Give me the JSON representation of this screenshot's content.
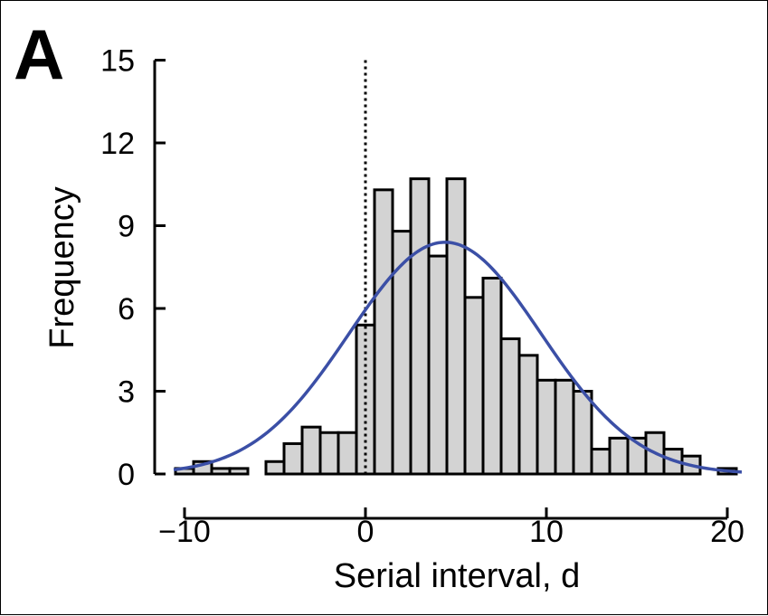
{
  "panel_label": "A",
  "chart_data": {
    "type": "bar",
    "title": "",
    "xlabel": "Serial interval, d",
    "ylabel": "Frequency",
    "xlim": [
      -11,
      21
    ],
    "ylim": [
      0,
      15
    ],
    "x_ticks": [
      -10,
      0,
      10,
      20
    ],
    "x_tick_labels": [
      "−10",
      "0",
      "10",
      "20"
    ],
    "y_ticks": [
      0,
      3,
      6,
      9,
      12,
      15
    ],
    "y_tick_labels": [
      "0",
      "3",
      "6",
      "9",
      "12",
      "15"
    ],
    "bin_width": 1,
    "bins": [
      {
        "x0": -10.5,
        "x1": -9.5,
        "value": 0.2
      },
      {
        "x0": -9.5,
        "x1": -8.5,
        "value": 0.45
      },
      {
        "x0": -8.5,
        "x1": -7.5,
        "value": 0.2
      },
      {
        "x0": -7.5,
        "x1": -6.5,
        "value": 0.2
      },
      {
        "x0": -5.5,
        "x1": -4.5,
        "value": 0.45
      },
      {
        "x0": -4.5,
        "x1": -3.5,
        "value": 1.1
      },
      {
        "x0": -3.5,
        "x1": -2.5,
        "value": 1.7
      },
      {
        "x0": -2.5,
        "x1": -1.5,
        "value": 1.5
      },
      {
        "x0": -1.5,
        "x1": -0.5,
        "value": 1.5
      },
      {
        "x0": -0.5,
        "x1": 0.5,
        "value": 5.4
      },
      {
        "x0": 0.5,
        "x1": 1.5,
        "value": 10.3
      },
      {
        "x0": 1.5,
        "x1": 2.5,
        "value": 8.8
      },
      {
        "x0": 2.5,
        "x1": 3.5,
        "value": 10.7
      },
      {
        "x0": 3.5,
        "x1": 4.5,
        "value": 7.9
      },
      {
        "x0": 4.5,
        "x1": 5.5,
        "value": 10.7
      },
      {
        "x0": 5.5,
        "x1": 6.5,
        "value": 6.4
      },
      {
        "x0": 6.5,
        "x1": 7.5,
        "value": 7.1
      },
      {
        "x0": 7.5,
        "x1": 8.5,
        "value": 4.9
      },
      {
        "x0": 8.5,
        "x1": 9.5,
        "value": 4.3
      },
      {
        "x0": 9.5,
        "x1": 10.5,
        "value": 3.4
      },
      {
        "x0": 10.5,
        "x1": 11.5,
        "value": 3.4
      },
      {
        "x0": 11.5,
        "x1": 12.5,
        "value": 3.0
      },
      {
        "x0": 12.5,
        "x1": 13.5,
        "value": 0.9
      },
      {
        "x0": 13.5,
        "x1": 14.5,
        "value": 1.3
      },
      {
        "x0": 14.5,
        "x1": 15.5,
        "value": 1.3
      },
      {
        "x0": 15.5,
        "x1": 16.5,
        "value": 1.5
      },
      {
        "x0": 16.5,
        "x1": 17.5,
        "value": 0.9
      },
      {
        "x0": 17.5,
        "x1": 18.5,
        "value": 0.65
      },
      {
        "x0": 19.5,
        "x1": 20.5,
        "value": 0.2
      }
    ],
    "fit_curve": {
      "type": "normal",
      "mean": 4.4,
      "sd": 5.3,
      "peak": 8.4,
      "x_range": [
        -10.6,
        20.8
      ],
      "color": "#3b4fa6"
    },
    "reference_line": {
      "x": 0,
      "style": "dotted",
      "color": "#000000",
      "y_top": 15
    },
    "colors": {
      "bar_fill": "#d3d3d3",
      "bar_stroke": "#000000",
      "axis": "#000000"
    },
    "grid": false,
    "legend": "none"
  }
}
